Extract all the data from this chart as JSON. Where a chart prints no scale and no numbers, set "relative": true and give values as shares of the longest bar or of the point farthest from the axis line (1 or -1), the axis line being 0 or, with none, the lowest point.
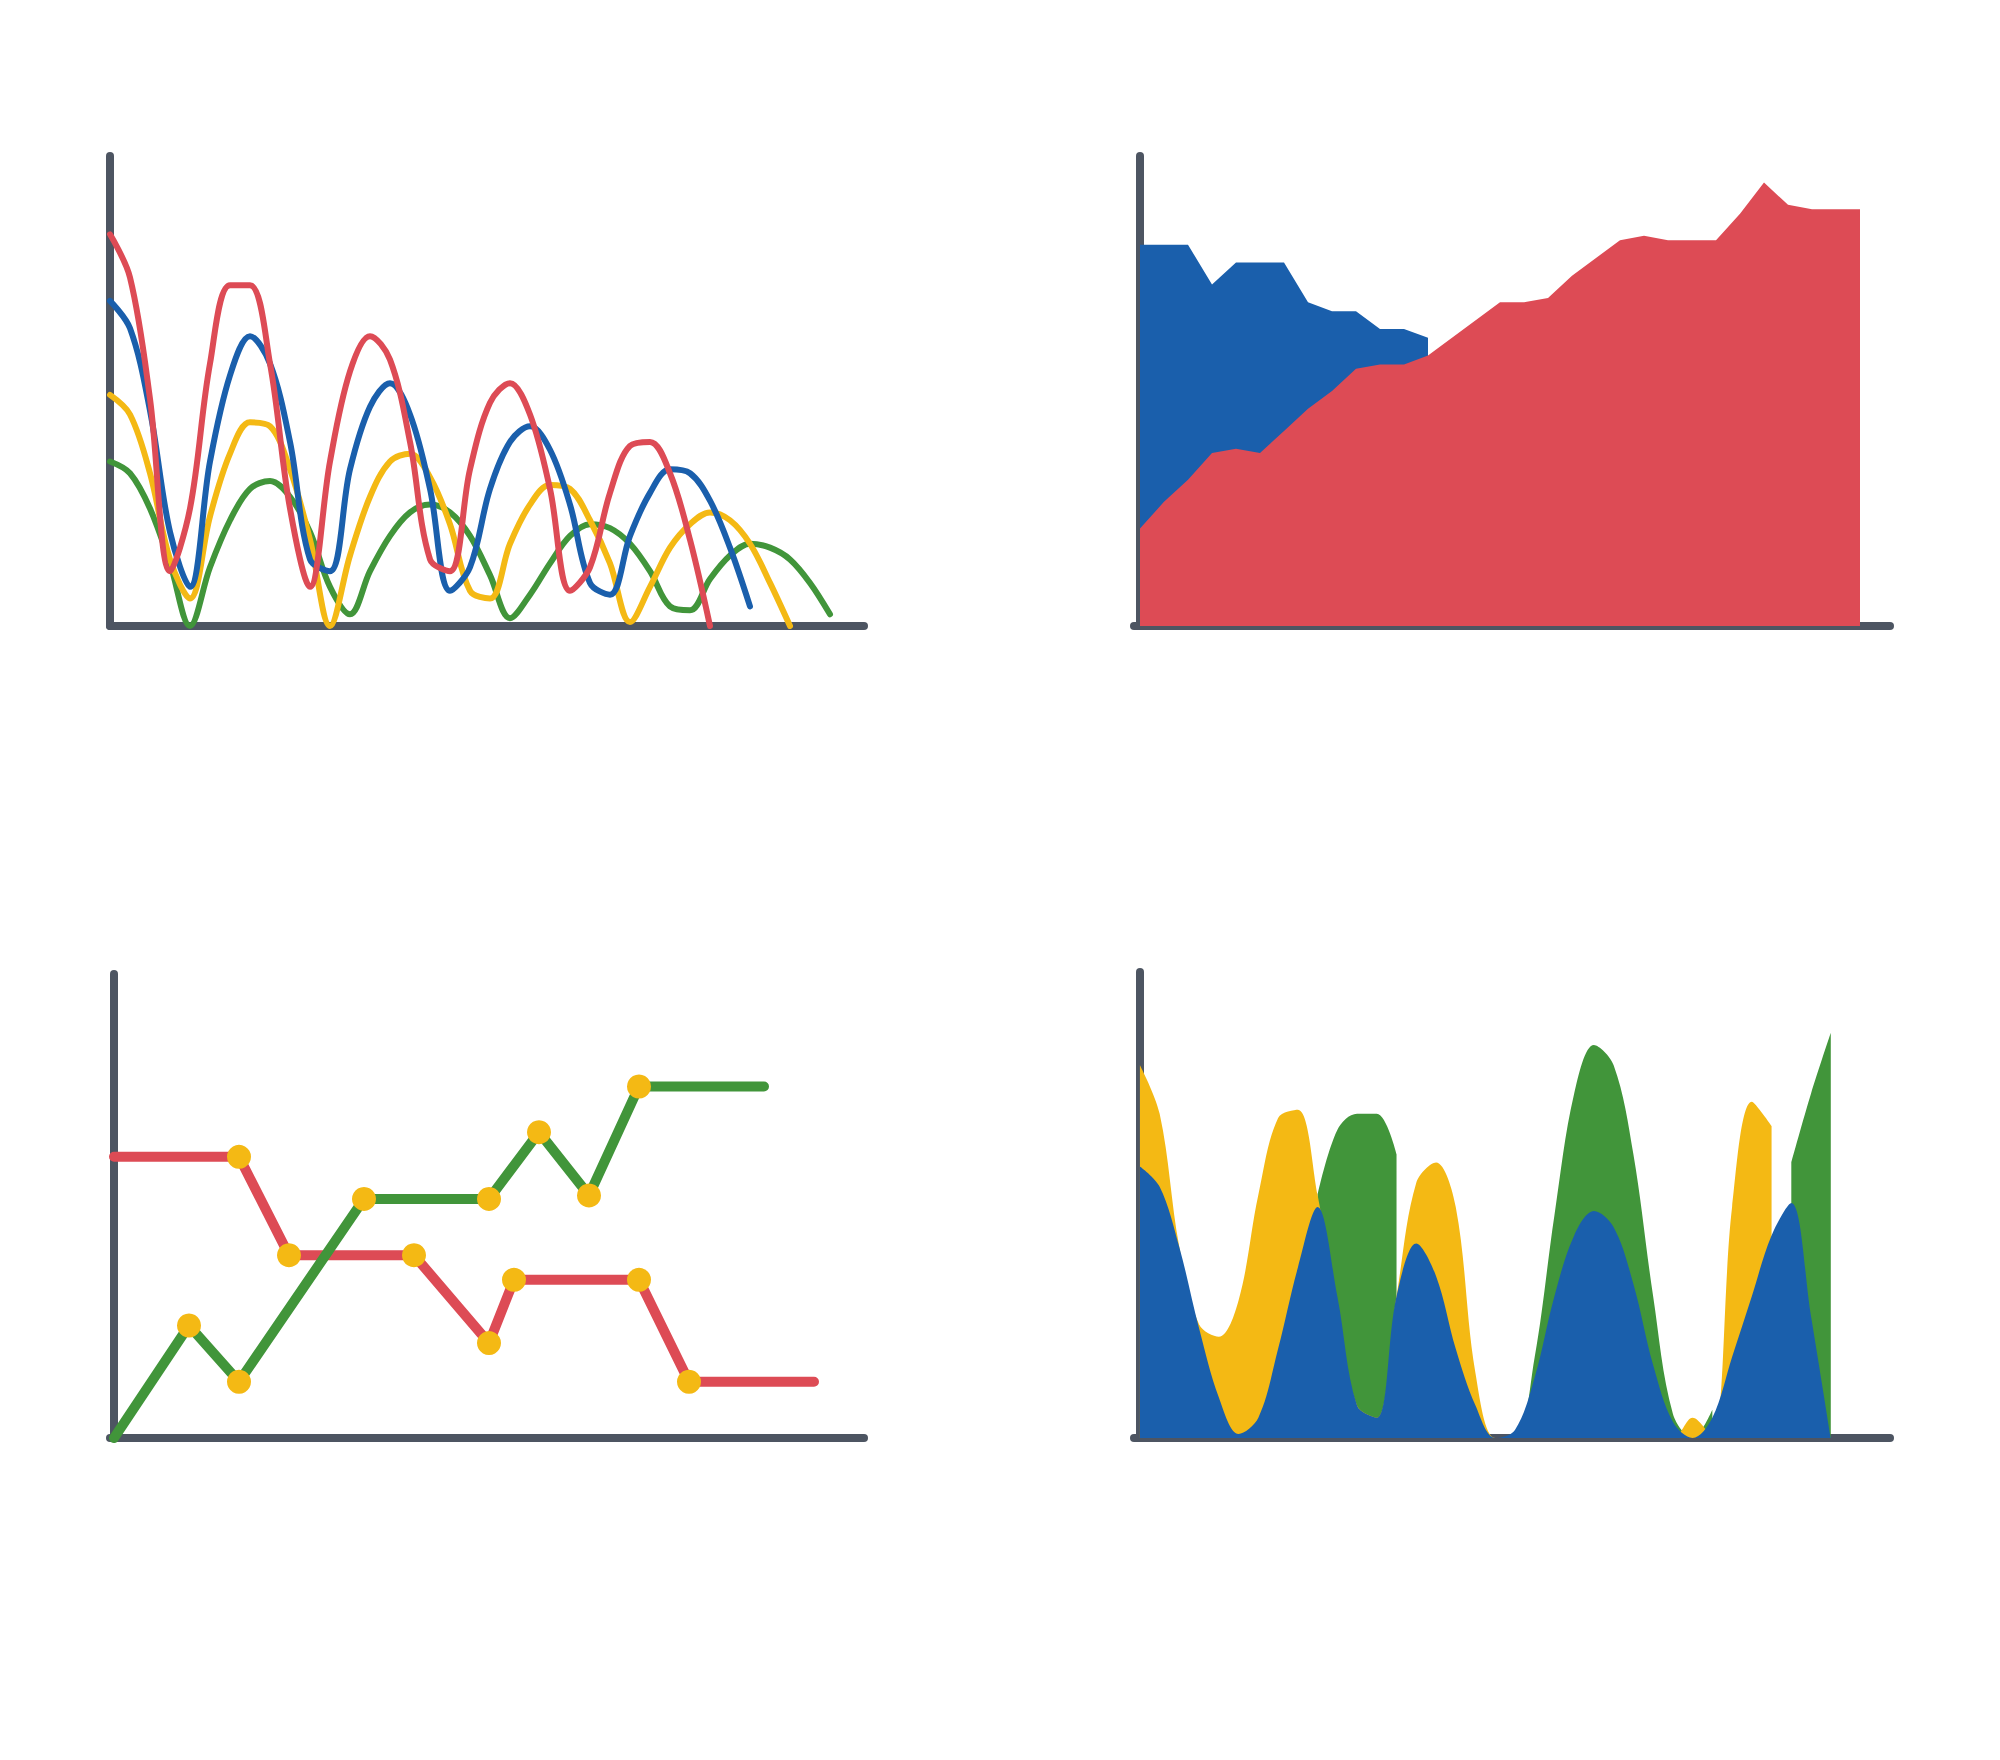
{
  "chart_data": [
    {
      "type": "line",
      "relative": true,
      "categories": [
        null,
        null,
        null,
        null,
        null,
        null,
        null,
        null,
        null,
        null,
        null,
        null,
        null,
        null,
        null,
        null,
        null,
        null,
        null,
        null,
        null,
        null,
        null,
        null,
        null,
        null,
        null,
        null,
        null,
        null,
        null,
        null,
        null,
        null,
        null,
        null,
        null,
        null
      ],
      "series": [
        {
          "color": "#41953a",
          "values": [
            0.42,
            0.39,
            0.3,
            0.16,
            0,
            0.15,
            0.27,
            0.35,
            0.37,
            0.33,
            0.24,
            0.1,
            0.03,
            0.14,
            0.23,
            0.29,
            0.31,
            0.29,
            0.23,
            0.13,
            0.02,
            0.08,
            0.16,
            0.23,
            0.26,
            0.25,
            0.21,
            0.14,
            0.05,
            0.04,
            0.12,
            0.18,
            0.21,
            0.2,
            0.17,
            0.11,
            0.03,
            null
          ]
        },
        {
          "color": "#f4b914",
          "values": [
            0.59,
            0.54,
            0.39,
            0.17,
            0.07,
            0.28,
            0.44,
            0.52,
            0.51,
            0.4,
            0.22,
            0,
            0.18,
            0.33,
            0.42,
            0.44,
            0.38,
            0.26,
            0.09,
            0.07,
            0.21,
            0.31,
            0.36,
            0.35,
            0.27,
            0.16,
            0.01,
            0.1,
            0.2,
            0.26,
            0.29,
            0.27,
            0.21,
            0.11,
            0,
            null,
            null,
            null
          ]
        },
        {
          "color": "#1a5fac",
          "values": [
            0.83,
            0.76,
            0.55,
            0.24,
            0.1,
            0.42,
            0.64,
            0.74,
            0.67,
            0.47,
            0.17,
            0.14,
            0.4,
            0.56,
            0.62,
            0.54,
            0.35,
            0.09,
            0.15,
            0.35,
            0.47,
            0.51,
            0.45,
            0.31,
            0.11,
            0.08,
            0.23,
            0.34,
            0.4,
            0.39,
            0.32,
            0.2,
            0.05,
            null,
            null,
            null,
            null,
            null
          ]
        },
        {
          "color": "#dd4b55",
          "values": [
            1,
            0.89,
            0.58,
            0.14,
            0.3,
            0.67,
            0.87,
            0.87,
            0.67,
            0.3,
            0.1,
            0.42,
            0.65,
            0.74,
            0.68,
            0.47,
            0.17,
            0.14,
            0.4,
            0.57,
            0.62,
            0.54,
            0.35,
            0.09,
            0.15,
            0.34,
            0.46,
            0.47,
            0.39,
            0.22,
            0,
            null,
            null,
            null,
            null,
            null,
            null,
            null
          ]
        }
      ]
    },
    {
      "type": "area",
      "relative": true,
      "categories": [
        null,
        null,
        null,
        null,
        null,
        null,
        null,
        null,
        null,
        null,
        null,
        null,
        null,
        null,
        null,
        null,
        null,
        null,
        null,
        null,
        null,
        null,
        null,
        null,
        null,
        null,
        null,
        null,
        null,
        null,
        null
      ],
      "series": [
        {
          "color": "#1a5fac",
          "values": [
            0.86,
            0.86,
            0.86,
            0.77,
            0.82,
            0.82,
            0.82,
            0.73,
            0.71,
            0.71,
            0.67,
            0.67,
            0.65,
            null,
            null,
            null,
            null,
            null,
            null,
            null,
            null,
            null,
            null,
            null,
            null,
            null,
            null,
            null,
            null,
            null,
            null
          ]
        },
        {
          "color": "#dd4b55",
          "values": [
            0.22,
            0.28,
            0.33,
            0.39,
            0.4,
            0.39,
            0.44,
            0.49,
            0.53,
            0.58,
            0.59,
            0.59,
            0.61,
            0.65,
            0.69,
            0.73,
            0.73,
            0.74,
            0.79,
            0.83,
            0.87,
            0.88,
            0.87,
            0.87,
            0.87,
            0.93,
            1,
            0.95,
            0.94,
            0.94,
            0.94
          ]
        }
      ]
    },
    {
      "type": "line",
      "relative": true,
      "categories": [
        null,
        null,
        null,
        null,
        null,
        null,
        null,
        null,
        null,
        null,
        null,
        null,
        null,
        null,
        null,
        null,
        null,
        null,
        null,
        null,
        null,
        null,
        null,
        null,
        null,
        null,
        null,
        null,
        null,
        null,
        null
      ],
      "series": [
        {
          "color": "#dd4b55",
          "marker": "circle",
          "values": [
            0.8,
            null,
            null,
            null,
            null,
            0.8,
            null,
            0.52,
            null,
            null,
            null,
            null,
            0.52,
            null,
            null,
            0.27,
            0.45,
            null,
            null,
            null,
            null,
            0.45,
            null,
            0.16,
            null,
            null,
            null,
            null,
            0.16,
            null,
            null
          ],
          "colors": [
            null,
            null,
            null,
            null,
            null,
            "#f4b914",
            null,
            "#f4b914",
            null,
            null,
            null,
            null,
            "#f4b914",
            null,
            null,
            "#f4b914",
            "#f4b914",
            null,
            null,
            null,
            null,
            "#f4b914",
            null,
            "#f4b914",
            null,
            null,
            null,
            null,
            null,
            null,
            null
          ]
        },
        {
          "color": "#41953a",
          "marker": "circle",
          "values": [
            0,
            null,
            null,
            0.32,
            null,
            0.16,
            null,
            null,
            null,
            null,
            0.68,
            null,
            null,
            null,
            null,
            0.68,
            null,
            0.87,
            null,
            0.69,
            null,
            1,
            null,
            null,
            null,
            null,
            1,
            null,
            null,
            null,
            null
          ],
          "colors": [
            null,
            null,
            null,
            "#f4b914",
            null,
            "#f4b914",
            null,
            null,
            null,
            null,
            "#f4b914",
            null,
            null,
            null,
            null,
            "#f4b914",
            null,
            "#f4b914",
            null,
            "#f4b914",
            null,
            "#f4b914",
            null,
            null,
            null,
            null,
            null,
            null,
            null,
            null,
            null
          ]
        }
      ]
    },
    {
      "type": "area",
      "relative": true,
      "categories": [
        null,
        null,
        null,
        null,
        null,
        null,
        null,
        null,
        null,
        null,
        null,
        null,
        null,
        null,
        null,
        null,
        null,
        null,
        null,
        null,
        null,
        null,
        null,
        null,
        null,
        null,
        null,
        null,
        null,
        null,
        null,
        null,
        null,
        null,
        null,
        null
      ],
      "series": [
        {
          "color": "#41953a",
          "values": [
            null,
            null,
            null,
            null,
            null,
            null,
            null,
            null,
            null,
            0.6,
            0.76,
            0.8,
            0.8,
            0.7,
            null,
            null,
            null,
            null,
            0,
            0,
            0.2,
            0.55,
            0.85,
            0.97,
            0.92,
            0.7,
            0.35,
            0.06,
            0,
            0.07,
            null,
            null,
            null,
            0.68,
            0.85,
            1
          ]
        },
        {
          "color": "#f4b914",
          "values": [
            0.92,
            0.8,
            0.47,
            0.28,
            0.25,
            0.34,
            0.6,
            0.79,
            0.81,
            0.6,
            0.31,
            0.08,
            0.05,
            0.35,
            0.63,
            0.68,
            0.57,
            0.16,
            0,
            0,
            0,
            0,
            0,
            0,
            0,
            0,
            0,
            0,
            0.05,
            0,
            0.57,
            0.83,
            0.77,
            null,
            null,
            null
          ]
        },
        {
          "color": "#1a5fac",
          "values": [
            0.67,
            0.62,
            0.47,
            0.27,
            0.1,
            0.01,
            0.05,
            0.22,
            0.42,
            0.57,
            0.35,
            0.08,
            0.05,
            0.35,
            0.48,
            0.4,
            0.22,
            0.08,
            0,
            0.02,
            0.15,
            0.35,
            0.5,
            0.56,
            0.52,
            0.38,
            0.18,
            0.04,
            0,
            0.05,
            0.2,
            0.35,
            0.5,
            0.58,
            0.3,
            0
          ]
        }
      ]
    }
  ]
}
